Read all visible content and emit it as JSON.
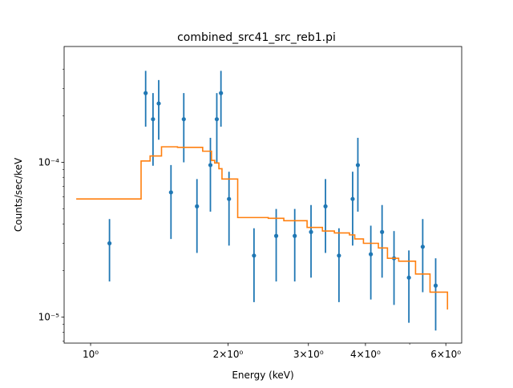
{
  "chart_data": {
    "type": "scatter",
    "title": "combined_src41_src_reb1.pi",
    "xlabel": "Energy (keV)",
    "ylabel": "Counts/sec/keV",
    "xscale": "log",
    "yscale": "log",
    "xlim": [
      0.875,
      6.5
    ],
    "ylim": [
      6.8e-06,
      0.00056
    ],
    "grid": false,
    "xticks": [
      {
        "value": 1,
        "label": "10⁰"
      },
      {
        "value": 2,
        "label": "2×10⁰"
      },
      {
        "value": 3,
        "label": "3×10⁰"
      },
      {
        "value": 4,
        "label": "4×10⁰"
      },
      {
        "value": 6,
        "label": "6×10⁰"
      }
    ],
    "x_minor_ticks": [
      5
    ],
    "yticks": [
      {
        "value": 0.0001,
        "label": "10⁻⁴"
      },
      {
        "value": 1e-05,
        "label": "10⁻⁵"
      }
    ],
    "y_minor_ticks": [
      2e-05,
      3e-05,
      4e-05,
      5e-05,
      6e-05,
      7e-05,
      8e-05,
      9e-05,
      0.0002,
      0.0003,
      0.0004,
      7e-06,
      8e-06,
      9e-06
    ],
    "colors": {
      "data": "#1f77b4",
      "model": "#ff7f0e"
    },
    "series": [
      {
        "kind": "errorbar",
        "points": [
          {
            "x": 1.1,
            "y": 3e-05,
            "ylo": 1.7e-05,
            "yhi": 4.3e-05
          },
          {
            "x": 1.32,
            "y": 0.00028,
            "ylo": 0.00017,
            "yhi": 0.00039
          },
          {
            "x": 1.37,
            "y": 0.00019,
            "ylo": 9.5e-05,
            "yhi": 0.00028
          },
          {
            "x": 1.41,
            "y": 0.00024,
            "ylo": 0.00014,
            "yhi": 0.00034
          },
          {
            "x": 1.5,
            "y": 6.4e-05,
            "ylo": 3.2e-05,
            "yhi": 9.6e-05
          },
          {
            "x": 1.6,
            "y": 0.00019,
            "ylo": 0.0001,
            "yhi": 0.00028
          },
          {
            "x": 1.71,
            "y": 5.2e-05,
            "ylo": 2.6e-05,
            "yhi": 7.8e-05
          },
          {
            "x": 1.83,
            "y": 9.6e-05,
            "ylo": 4.8e-05,
            "yhi": 0.000144
          },
          {
            "x": 1.89,
            "y": 0.00019,
            "ylo": 0.0001,
            "yhi": 0.00028
          },
          {
            "x": 1.93,
            "y": 0.00028,
            "ylo": 0.00017,
            "yhi": 0.00039
          },
          {
            "x": 2.01,
            "y": 5.8e-05,
            "ylo": 2.9e-05,
            "yhi": 8.7e-05
          },
          {
            "x": 2.28,
            "y": 2.5e-05,
            "ylo": 1.25e-05,
            "yhi": 3.75e-05
          },
          {
            "x": 2.55,
            "y": 3.35e-05,
            "ylo": 1.7e-05,
            "yhi": 5e-05
          },
          {
            "x": 2.8,
            "y": 3.35e-05,
            "ylo": 1.7e-05,
            "yhi": 5e-05
          },
          {
            "x": 3.04,
            "y": 3.55e-05,
            "ylo": 1.8e-05,
            "yhi": 5.3e-05
          },
          {
            "x": 3.27,
            "y": 5.2e-05,
            "ylo": 2.6e-05,
            "yhi": 7.8e-05
          },
          {
            "x": 3.5,
            "y": 2.5e-05,
            "ylo": 1.25e-05,
            "yhi": 3.75e-05
          },
          {
            "x": 3.75,
            "y": 5.8e-05,
            "ylo": 2.9e-05,
            "yhi": 8.7e-05
          },
          {
            "x": 3.85,
            "y": 9.6e-05,
            "ylo": 4.8e-05,
            "yhi": 0.000144
          },
          {
            "x": 4.11,
            "y": 2.55e-05,
            "ylo": 1.3e-05,
            "yhi": 3.9e-05
          },
          {
            "x": 4.35,
            "y": 3.55e-05,
            "ylo": 1.8e-05,
            "yhi": 5.3e-05
          },
          {
            "x": 4.62,
            "y": 2.4e-05,
            "ylo": 1.2e-05,
            "yhi": 3.6e-05
          },
          {
            "x": 4.98,
            "y": 1.8e-05,
            "ylo": 9.2e-06,
            "yhi": 2.7e-05
          },
          {
            "x": 5.34,
            "y": 2.85e-05,
            "ylo": 1.45e-05,
            "yhi": 4.3e-05
          },
          {
            "x": 5.7,
            "y": 1.6e-05,
            "ylo": 8.2e-06,
            "yhi": 2.4e-05
          }
        ]
      },
      {
        "kind": "step",
        "x": [
          0.93,
          1.29,
          1.35,
          1.43,
          1.55,
          1.76,
          1.84,
          1.87,
          1.91,
          1.94,
          2.02,
          2.1,
          2.45,
          2.65,
          2.98,
          3.22,
          3.42,
          3.69,
          3.79,
          3.96,
          4.27,
          4.47,
          4.73,
          5.15,
          5.54,
          6.05
        ],
        "y": [
          5.8e-05,
          0.000102,
          0.00011,
          0.000126,
          0.000125,
          0.000118,
          0.000103,
          9.9e-05,
          9.1e-05,
          7.8e-05,
          7.8e-05,
          4.4e-05,
          4.35e-05,
          4.2e-05,
          3.8e-05,
          3.6e-05,
          3.5e-05,
          3.4e-05,
          3.2e-05,
          3e-05,
          2.8e-05,
          2.4e-05,
          2.3e-05,
          1.9e-05,
          1.45e-05,
          1.12e-05
        ]
      }
    ]
  }
}
